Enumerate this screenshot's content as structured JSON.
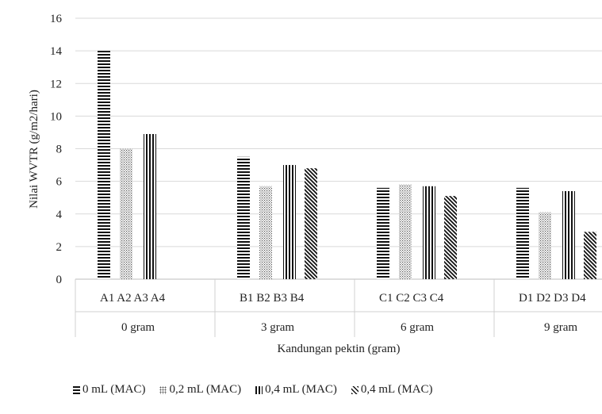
{
  "chart_data": {
    "type": "bar",
    "ylabel": "Nilai WVTR (g/m2/hari)",
    "xlabel": "Kandungan pektin (gram)",
    "ylim": [
      0,
      16
    ],
    "yticks": [
      "0",
      "2",
      "4",
      "6",
      "8",
      "10",
      "12",
      "14",
      "16"
    ],
    "grid": true,
    "legend_position": "bottom",
    "groups": [
      {
        "name": "0 gram",
        "labels": [
          "A1",
          "A2",
          "A3",
          "A4"
        ]
      },
      {
        "name": "3 gram",
        "labels": [
          "B1",
          "B2",
          "B3",
          "B4"
        ]
      },
      {
        "name": "6 gram",
        "labels": [
          "C1",
          "C2",
          "C3",
          "C4"
        ]
      },
      {
        "name": "9 gram",
        "labels": [
          "D1",
          "D2",
          "D3",
          "D4"
        ]
      }
    ],
    "series": [
      {
        "name": "0 mL (MAC)",
        "pattern": "horizontal",
        "values": [
          14.0,
          7.5,
          5.6,
          5.6
        ]
      },
      {
        "name": "0,2 mL (MAC)",
        "pattern": "dots",
        "values": [
          8.0,
          5.7,
          5.8,
          4.1
        ]
      },
      {
        "name": "0,4 mL (MAC)",
        "pattern": "vertical",
        "values": [
          8.9,
          7.0,
          5.7,
          5.4
        ]
      },
      {
        "name": "0,4 mL (MAC)",
        "pattern": "diagonal",
        "values": [
          0,
          6.8,
          5.1,
          2.9
        ]
      }
    ]
  }
}
